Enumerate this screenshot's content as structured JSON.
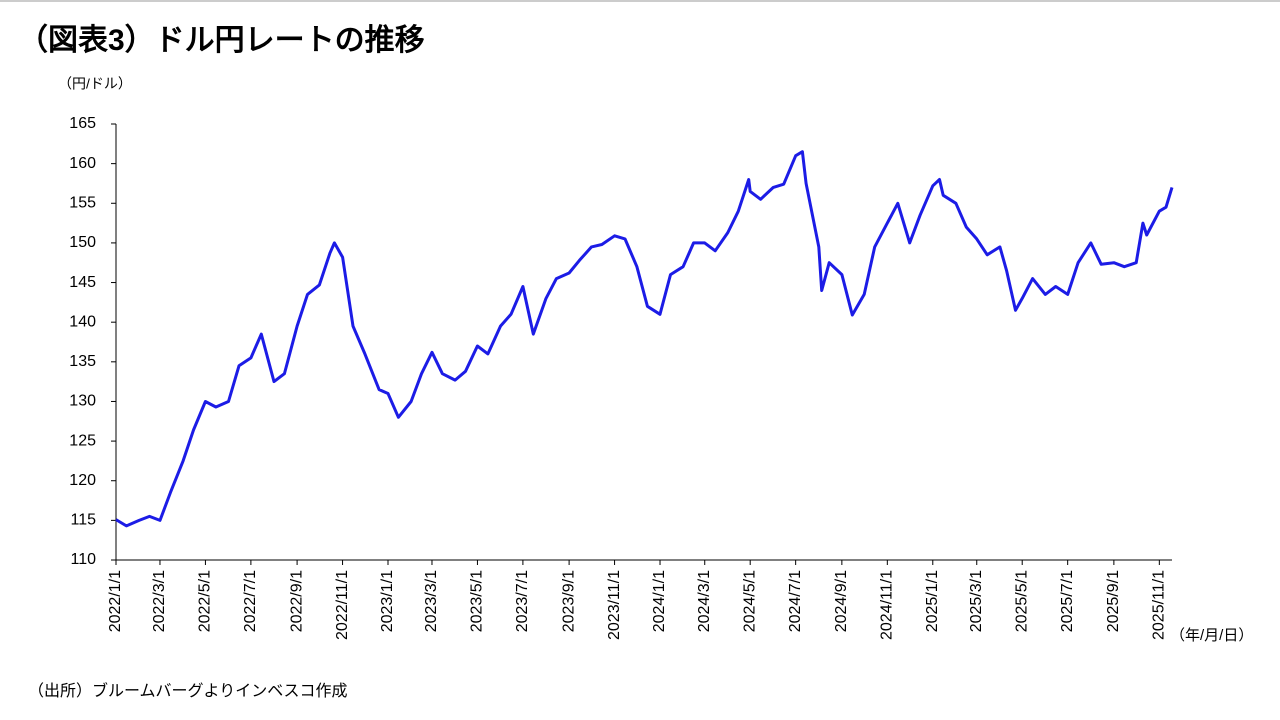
{
  "chart_data": {
    "type": "line",
    "title": "（図表3）ドル円レートの推移",
    "y_label": "（円/ドル）",
    "x_label": "（年/月/日）",
    "source": "（出所）ブルームバーグよりインベスコ作成",
    "grid": false,
    "ylim": [
      110,
      165
    ],
    "yticks": [
      110,
      115,
      120,
      125,
      130,
      135,
      140,
      145,
      150,
      155,
      160,
      165
    ],
    "xlim": [
      "2022/1/1",
      "2025/11/18"
    ],
    "xticks": [
      "2022/1/1",
      "2022/3/1",
      "2022/5/1",
      "2022/7/1",
      "2022/9/1",
      "2022/11/1",
      "2023/1/1",
      "2023/3/1",
      "2023/5/1",
      "2023/7/1",
      "2023/9/1",
      "2023/11/1",
      "2024/1/1",
      "2024/3/1",
      "2024/5/1",
      "2024/7/1",
      "2024/9/1",
      "2024/11/1",
      "2025/1/1",
      "2025/3/1",
      "2025/5/1",
      "2025/7/1",
      "2025/9/1",
      "2025/11/1"
    ],
    "x": [
      "2022/1/1",
      "2022/1/15",
      "2022/2/1",
      "2022/2/15",
      "2022/3/1",
      "2022/3/15",
      "2022/4/1",
      "2022/4/15",
      "2022/5/1",
      "2022/5/15",
      "2022/6/1",
      "2022/6/15",
      "2022/7/1",
      "2022/7/15",
      "2022/8/1",
      "2022/8/15",
      "2022/9/1",
      "2022/9/15",
      "2022/10/1",
      "2022/10/15",
      "2022/10/21",
      "2022/11/1",
      "2022/11/15",
      "2022/12/1",
      "2022/12/20",
      "2023/1/1",
      "2023/1/15",
      "2023/2/1",
      "2023/2/15",
      "2023/3/1",
      "2023/3/15",
      "2023/4/1",
      "2023/4/15",
      "2023/5/1",
      "2023/5/15",
      "2023/6/1",
      "2023/6/15",
      "2023/7/1",
      "2023/7/15",
      "2023/8/1",
      "2023/8/15",
      "2023/9/1",
      "2023/9/15",
      "2023/10/1",
      "2023/10/15",
      "2023/11/1",
      "2023/11/15",
      "2023/12/1",
      "2023/12/15",
      "2024/1/1",
      "2024/1/15",
      "2024/2/1",
      "2024/2/15",
      "2024/3/1",
      "2024/3/15",
      "2024/4/1",
      "2024/4/15",
      "2024/4/29",
      "2024/5/1",
      "2024/5/15",
      "2024/6/1",
      "2024/6/15",
      "2024/7/1",
      "2024/7/10",
      "2024/7/15",
      "2024/8/1",
      "2024/8/5",
      "2024/8/15",
      "2024/9/1",
      "2024/9/15",
      "2024/10/1",
      "2024/10/15",
      "2024/11/1",
      "2024/11/15",
      "2024/12/1",
      "2024/12/15",
      "2025/1/1",
      "2025/1/10",
      "2025/1/15",
      "2025/2/1",
      "2025/2/15",
      "2025/3/1",
      "2025/3/15",
      "2025/4/1",
      "2025/4/10",
      "2025/4/22",
      "2025/5/1",
      "2025/5/15",
      "2025/6/1",
      "2025/6/15",
      "2025/7/1",
      "2025/7/15",
      "2025/8/1",
      "2025/8/15",
      "2025/9/1",
      "2025/9/15",
      "2025/10/1",
      "2025/10/10",
      "2025/10/15",
      "2025/11/1",
      "2025/11/10",
      "2025/11/18"
    ],
    "series": [
      {
        "name": "ドル円",
        "color": "#1c1ce6",
        "values": [
          115.1,
          114.3,
          115.0,
          115.5,
          115.0,
          118.5,
          122.5,
          126.4,
          130.0,
          129.3,
          130.0,
          134.5,
          135.5,
          138.5,
          132.5,
          133.5,
          139.5,
          143.5,
          144.7,
          148.7,
          150.0,
          148.2,
          139.5,
          136.0,
          131.5,
          131.0,
          128.0,
          130.0,
          133.5,
          136.2,
          133.5,
          132.7,
          133.8,
          137.0,
          136.0,
          139.5,
          141.0,
          144.5,
          138.5,
          143.0,
          145.5,
          146.2,
          147.8,
          149.5,
          149.8,
          150.9,
          150.5,
          147.0,
          142.0,
          141.0,
          146.0,
          147.0,
          150.0,
          150.0,
          149.0,
          151.3,
          154.0,
          158.0,
          156.5,
          155.5,
          157.0,
          157.4,
          161.0,
          161.5,
          157.5,
          149.5,
          144.0,
          147.5,
          146.0,
          140.9,
          143.5,
          149.5,
          152.5,
          155.0,
          150.0,
          153.5,
          157.2,
          158.0,
          156.0,
          155.0,
          152.0,
          150.5,
          148.5,
          149.5,
          146.5,
          141.5,
          143.0,
          145.5,
          143.5,
          144.5,
          143.5,
          147.5,
          150.0,
          147.3,
          147.5,
          147.0,
          147.5,
          152.5,
          151.0,
          154.0,
          154.5,
          157.0
        ]
      }
    ]
  }
}
